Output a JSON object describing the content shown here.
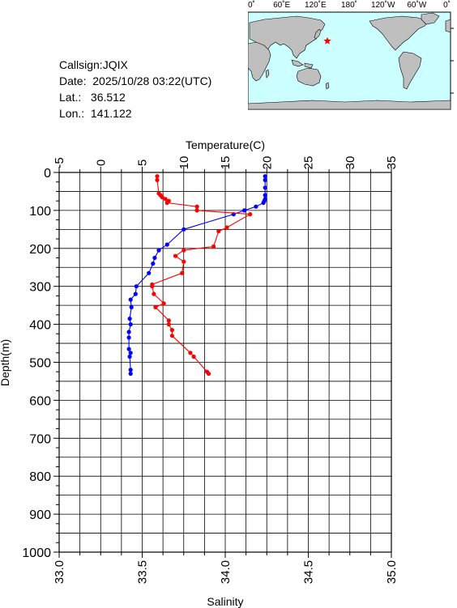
{
  "station": {
    "callsign_label": "Callsign:",
    "callsign": "JQIX",
    "date_label": "Date:",
    "date": "2025/10/28 03:22(UTC)",
    "lat_label": "Lat.:",
    "lat": "36.512",
    "lon_label": "Lon.:",
    "lon": "141.122"
  },
  "map": {
    "lon_labels": [
      "0˚",
      "60˚E",
      "120˚E",
      "180˚",
      "120˚W",
      "60˚W",
      "0˚"
    ],
    "lat_labels": [
      "60˚N",
      "0˚",
      "60˚S"
    ],
    "ocean_color": "#ccffff",
    "land_color": "#bfbfbf",
    "marker_color": "#ff0000",
    "marker_lat": 36.512,
    "marker_lon": 141.122
  },
  "chart_data": {
    "type": "line",
    "temperature_axis": {
      "label": "Temperature(C)",
      "range": [
        -5,
        35
      ],
      "ticks": [
        "-5",
        "0",
        "5",
        "10",
        "15",
        "20",
        "25",
        "30",
        "35"
      ]
    },
    "salinity_axis": {
      "label": "Salinity",
      "range": [
        33.0,
        35.0
      ],
      "ticks": [
        "33.0",
        "33.5",
        "34.0",
        "34.5",
        "35.0"
      ]
    },
    "depth_axis": {
      "label": "Depth(m)",
      "range": [
        0,
        1000
      ],
      "ticks": [
        "0",
        "100",
        "200",
        "300",
        "400",
        "500",
        "600",
        "700",
        "800",
        "900",
        "1000"
      ]
    },
    "grid": true,
    "series": [
      {
        "variable": "temperature",
        "color": "#0000ff",
        "depth": [
          10,
          20,
          40,
          60,
          70,
          75,
          80,
          90,
          100,
          110,
          150,
          190,
          205,
          225,
          240,
          265,
          300,
          320,
          335,
          355,
          385,
          400,
          420,
          435,
          465,
          475,
          485,
          520,
          530
        ],
        "values": [
          19.8,
          19.8,
          19.8,
          19.8,
          19.8,
          19.7,
          19.6,
          18.7,
          17.3,
          16.0,
          10.0,
          8.0,
          7.0,
          6.5,
          6.3,
          5.8,
          4.3,
          4.2,
          3.6,
          3.7,
          3.5,
          3.6,
          3.4,
          3.4,
          3.4,
          3.6,
          3.5,
          3.6,
          3.6
        ]
      },
      {
        "variable": "salinity",
        "color": "#ff0000",
        "depth": [
          10,
          20,
          55,
          60,
          65,
          70,
          75,
          80,
          90,
          100,
          110,
          145,
          155,
          195,
          205,
          220,
          235,
          265,
          295,
          300,
          320,
          345,
          355,
          390,
          400,
          415,
          430,
          475,
          485,
          525,
          530
        ],
        "values": [
          33.59,
          33.59,
          33.6,
          33.61,
          33.62,
          33.64,
          33.66,
          33.65,
          33.83,
          33.83,
          34.15,
          34.01,
          33.96,
          33.93,
          33.75,
          33.7,
          33.75,
          33.74,
          33.56,
          33.56,
          33.57,
          33.63,
          33.58,
          33.66,
          33.66,
          33.68,
          33.68,
          33.79,
          33.81,
          33.89,
          33.9
        ]
      }
    ]
  }
}
